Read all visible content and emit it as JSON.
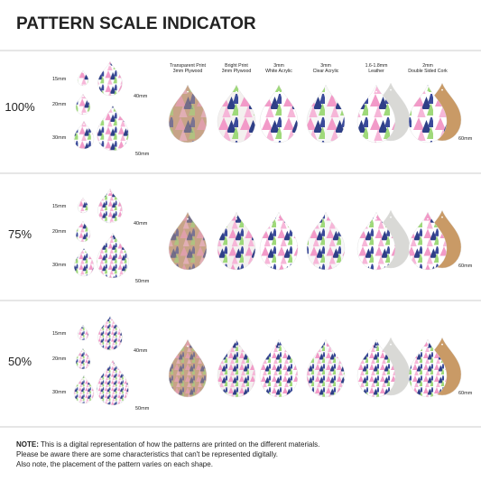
{
  "title": "PATTERN SCALE INDICATOR",
  "materials": [
    {
      "line1": "Transparent Print",
      "line2": "3mm Plywood"
    },
    {
      "line1": "Bright Print",
      "line2": "3mm Plywood"
    },
    {
      "line1": "3mm",
      "line2": "White Acrylic"
    },
    {
      "line1": "3mm",
      "line2": "Clear Acrylic"
    },
    {
      "line1": "1.6-1.8mm",
      "line2": "Leather"
    },
    {
      "line1": "2mm",
      "line2": "Double Sided Cork"
    }
  ],
  "sections": [
    {
      "scale": "100%",
      "sizes": [
        "15mm",
        "20mm",
        "30mm",
        "40mm",
        "50mm"
      ],
      "shape_size": "60mm"
    },
    {
      "scale": "75%",
      "sizes": [
        "15mm",
        "20mm",
        "30mm",
        "40mm",
        "50mm"
      ],
      "shape_size": "60mm"
    },
    {
      "scale": "50%",
      "sizes": [
        "15mm",
        "20mm",
        "30mm",
        "40mm",
        "50mm"
      ],
      "shape_size": "60mm"
    }
  ],
  "note": {
    "label": "NOTE:",
    "lines": [
      " This is a digital representation of how the patterns are printed on the different materials.",
      "Please be aware there are some characteristics that can't be represented digitally.",
      "Also note, the placement of the pattern varies on each shape."
    ]
  }
}
